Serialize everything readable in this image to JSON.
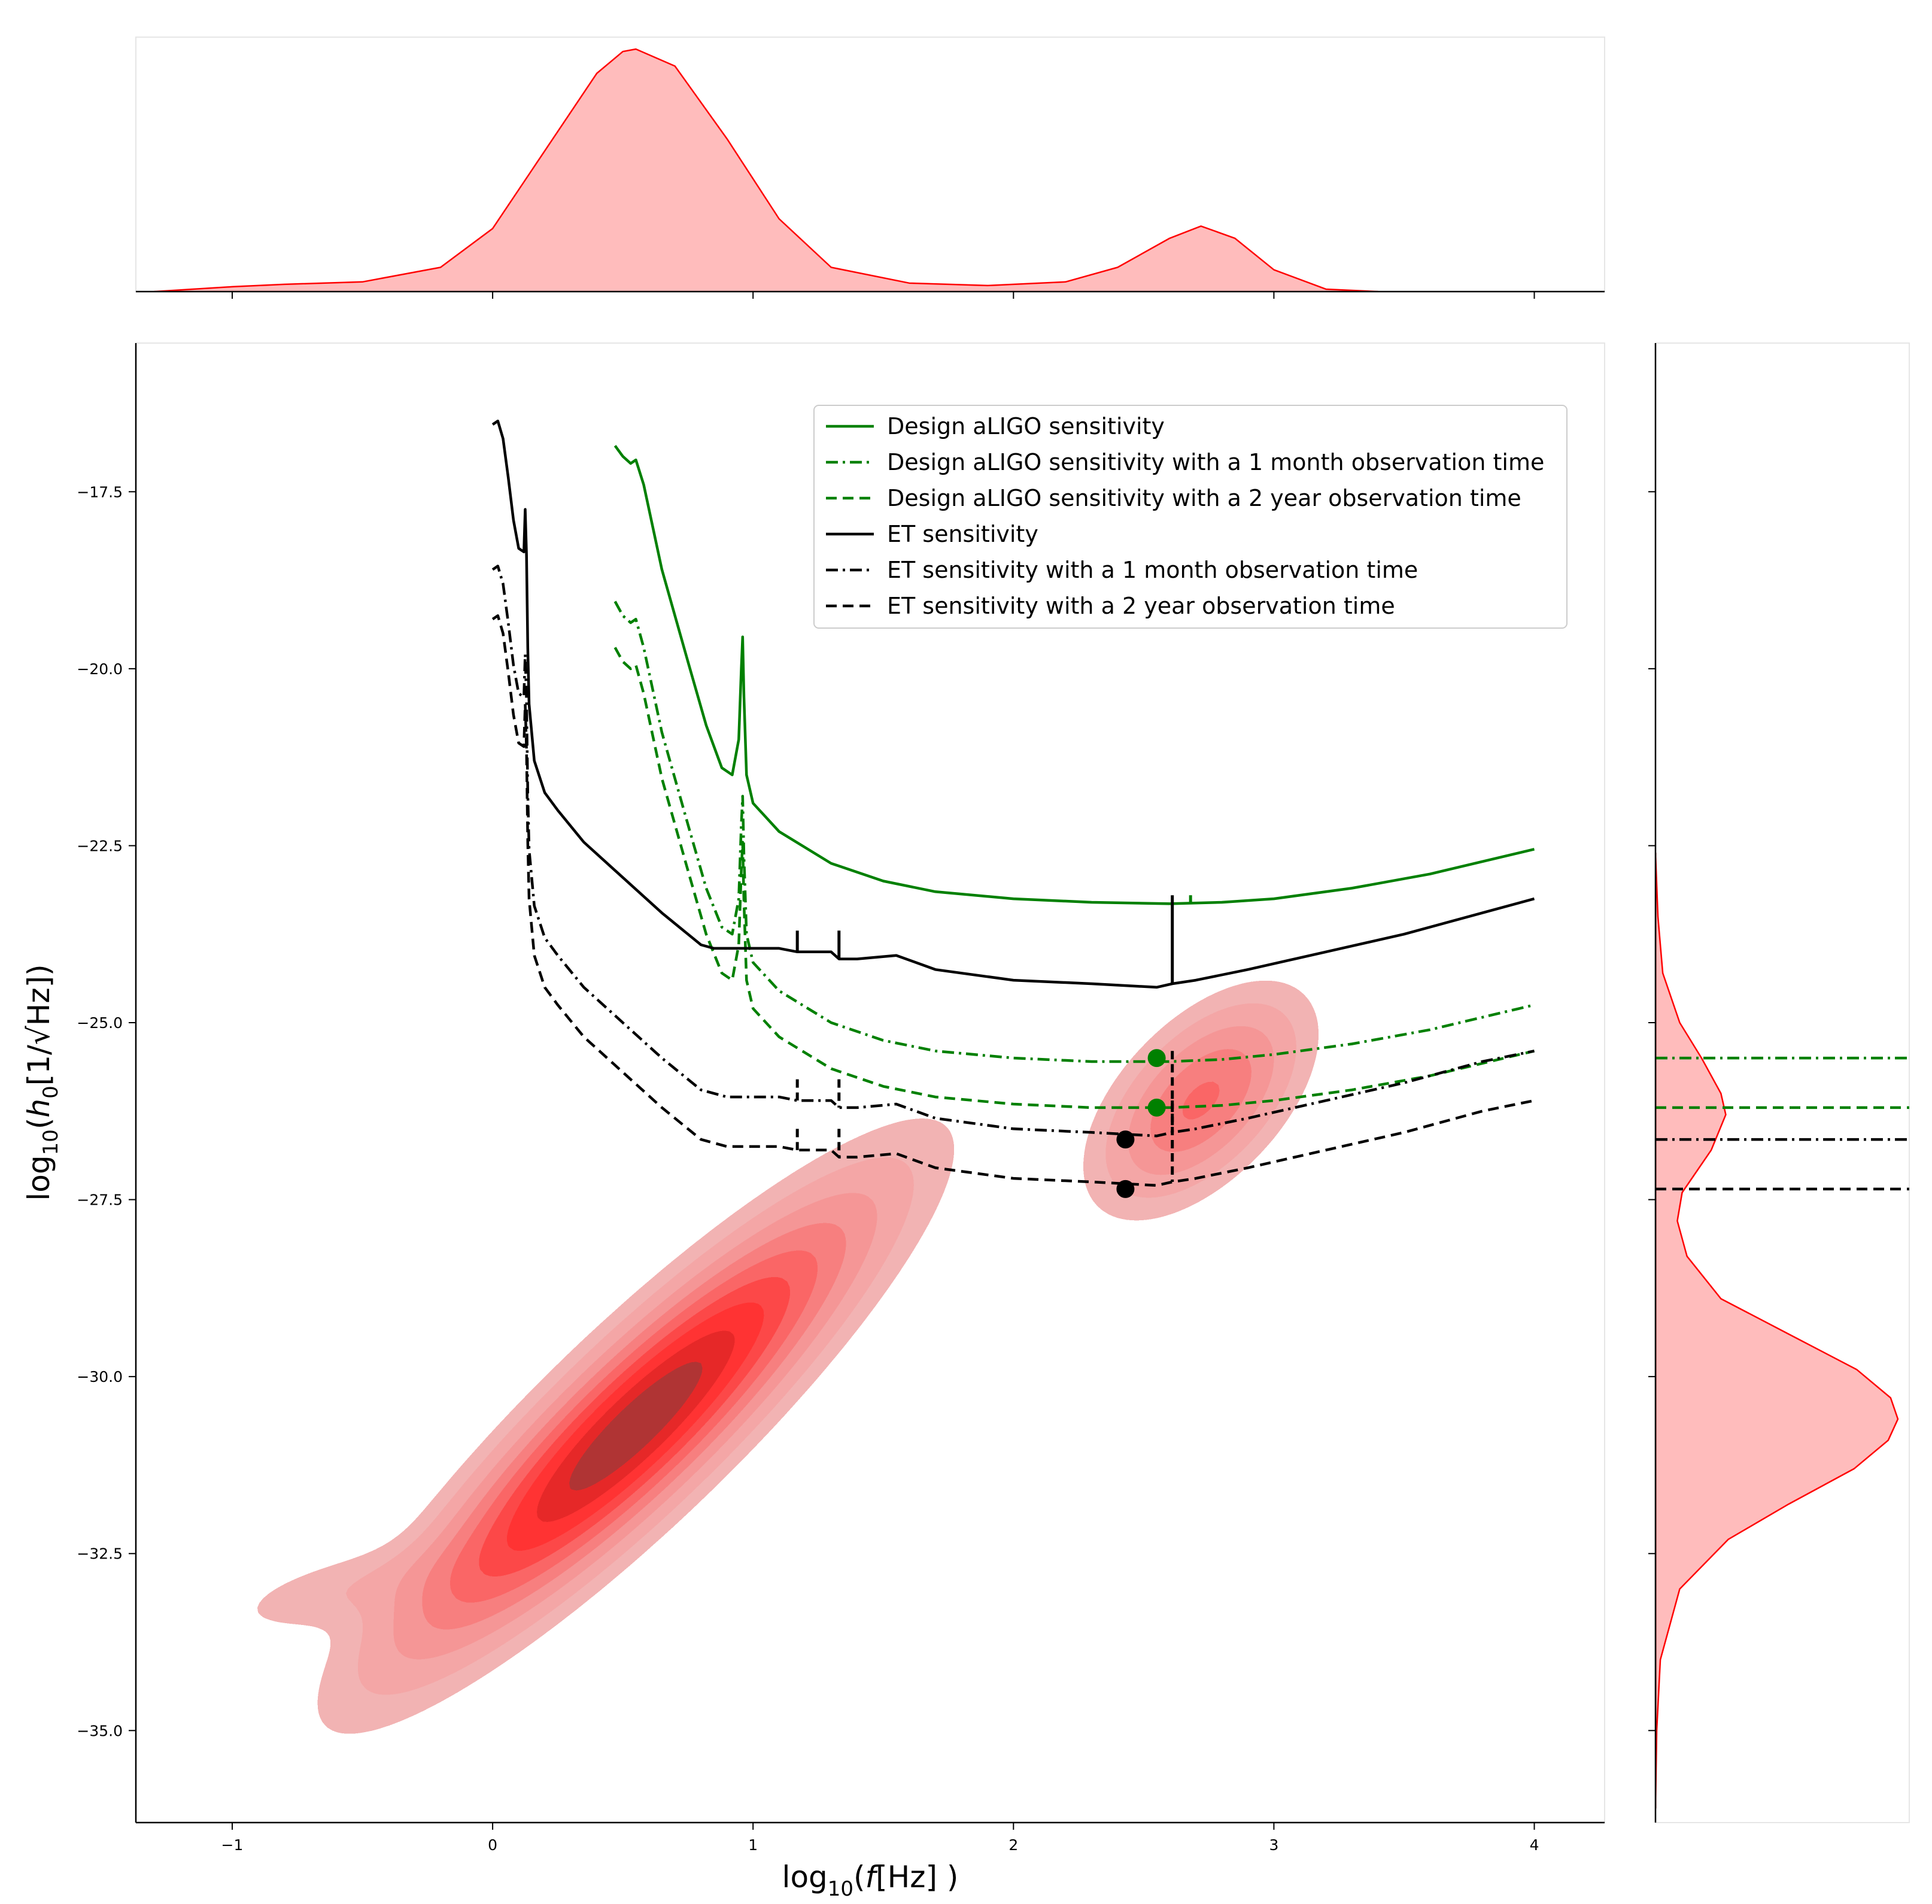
{
  "chart_data": {
    "type": "jointplot-kde",
    "xlabel_prefix": "log",
    "xlabel_sub": "10",
    "xlabel_open": "(",
    "xlabel_var": "f",
    "xlabel_rest": "[Hz] )",
    "ylabel_prefix": "log",
    "ylabel_sub": "10",
    "ylabel_open": "(",
    "ylabel_var": "h",
    "ylabel_var_sub": "0",
    "ylabel_rest": "[1/√Hz])",
    "xlim": [
      -1.37,
      4.27
    ],
    "ylim": [
      -36.3,
      -15.4
    ],
    "x_ticks": [
      -1,
      0,
      1,
      2,
      3,
      4
    ],
    "x_tick_labels": [
      "−1",
      "0",
      "1",
      "2",
      "3",
      "4"
    ],
    "y_ticks": [
      -17.5,
      -20.0,
      -22.5,
      -25.0,
      -27.5,
      -30.0,
      -32.5,
      -35.0
    ],
    "y_tick_labels": [
      "−17.5",
      "−20.0",
      "−22.5",
      "−25.0",
      "−27.5",
      "−30.0",
      "−32.5",
      "−35.0"
    ],
    "colors": {
      "green": "#008000",
      "black": "#000000",
      "kde_line": "#ff0000",
      "kde_fill": "#ffbcbc",
      "kde_levels": [
        "#f2b3b3",
        "#f4a6a6",
        "#f59696",
        "#f77f7f",
        "#fa6666",
        "#fc4848",
        "#ff3333",
        "#e62828",
        "#b03434",
        "#963232"
      ]
    },
    "legend": [
      {
        "label": "Design aLIGO sensitivity",
        "color": "#008000",
        "style": "solid"
      },
      {
        "label": "Design aLIGO sensitivity with a 1 month observation time",
        "color": "#008000",
        "style": "dashdot"
      },
      {
        "label": "Design aLIGO sensitivity with a 2 year observation time",
        "color": "#008000",
        "style": "dashed"
      },
      {
        "label": "ET sensitivity",
        "color": "#000000",
        "style": "solid"
      },
      {
        "label": "ET sensitivity with a 1 month observation time",
        "color": "#000000",
        "style": "dashdot"
      },
      {
        "label": "ET sensitivity with a 2 year observation time",
        "color": "#000000",
        "style": "dashed"
      }
    ],
    "series": [
      {
        "name": "Design aLIGO sensitivity",
        "color": "#008000",
        "style": "solid",
        "x": [
          0.47,
          0.5,
          0.53,
          0.55,
          0.58,
          0.65,
          0.75,
          0.82,
          0.88,
          0.92,
          0.945,
          0.955,
          0.96,
          0.965,
          0.975,
          1.0,
          1.1,
          1.3,
          1.5,
          1.7,
          2.0,
          2.3,
          2.6,
          2.8,
          3.0,
          3.3,
          3.6,
          4.0
        ],
        "y": [
          -16.85,
          -17.0,
          -17.1,
          -17.05,
          -17.4,
          -18.6,
          -19.9,
          -20.8,
          -21.4,
          -21.5,
          -21.0,
          -20.0,
          -19.55,
          -20.4,
          -21.5,
          -21.9,
          -22.3,
          -22.75,
          -23.0,
          -23.15,
          -23.25,
          -23.3,
          -23.32,
          -23.3,
          -23.25,
          -23.1,
          -22.9,
          -22.55
        ]
      },
      {
        "name": "Design aLIGO sensitivity with a 1 month observation time",
        "color": "#008000",
        "style": "dashdot",
        "x": [
          0.47,
          0.5,
          0.53,
          0.55,
          0.58,
          0.65,
          0.75,
          0.82,
          0.88,
          0.92,
          0.945,
          0.955,
          0.96,
          0.965,
          0.975,
          1.0,
          1.1,
          1.3,
          1.5,
          1.7,
          2.0,
          2.3,
          2.6,
          2.8,
          3.0,
          3.3,
          3.6,
          4.0
        ],
        "y": [
          -19.05,
          -19.25,
          -19.35,
          -19.3,
          -19.7,
          -20.9,
          -22.2,
          -23.1,
          -23.65,
          -23.75,
          -23.25,
          -22.2,
          -21.8,
          -22.65,
          -23.75,
          -24.15,
          -24.55,
          -25.0,
          -25.25,
          -25.4,
          -25.5,
          -25.55,
          -25.55,
          -25.52,
          -25.45,
          -25.3,
          -25.1,
          -24.75
        ]
      },
      {
        "name": "Design aLIGO sensitivity with a 2 year observation time",
        "color": "#008000",
        "style": "dashed",
        "x": [
          0.47,
          0.5,
          0.53,
          0.55,
          0.58,
          0.65,
          0.75,
          0.82,
          0.88,
          0.92,
          0.945,
          0.955,
          0.96,
          0.965,
          0.975,
          1.0,
          1.1,
          1.3,
          1.5,
          1.7,
          2.0,
          2.3,
          2.6,
          2.8,
          3.0,
          3.3,
          3.6,
          4.0
        ],
        "y": [
          -19.7,
          -19.9,
          -20.0,
          -19.95,
          -20.35,
          -21.55,
          -22.85,
          -23.75,
          -24.3,
          -24.4,
          -23.9,
          -22.85,
          -22.45,
          -23.3,
          -24.4,
          -24.8,
          -25.2,
          -25.65,
          -25.9,
          -26.05,
          -26.15,
          -26.2,
          -26.2,
          -26.17,
          -26.1,
          -25.95,
          -25.75,
          -25.4
        ]
      },
      {
        "name": "ET sensitivity",
        "color": "#000000",
        "style": "solid",
        "x": [
          0.0,
          0.02,
          0.04,
          0.06,
          0.08,
          0.1,
          0.12,
          0.125,
          0.13,
          0.135,
          0.14,
          0.16,
          0.2,
          0.25,
          0.35,
          0.5,
          0.65,
          0.8,
          0.85,
          0.9,
          1.0,
          1.1,
          1.17,
          1.2,
          1.3,
          1.33,
          1.4,
          1.55,
          1.7,
          2.0,
          2.3,
          2.55,
          2.61,
          2.7,
          2.9,
          3.2,
          3.5,
          3.8,
          4.0
        ],
        "y": [
          -16.55,
          -16.5,
          -16.75,
          -17.3,
          -17.9,
          -18.3,
          -18.35,
          -17.75,
          -18.4,
          -19.7,
          -20.5,
          -21.3,
          -21.75,
          -22.0,
          -22.45,
          -22.95,
          -23.45,
          -23.9,
          -23.95,
          -23.95,
          -23.95,
          -23.95,
          -24.0,
          -24.0,
          -24.0,
          -24.1,
          -24.1,
          -24.05,
          -24.25,
          -24.4,
          -24.45,
          -24.5,
          -24.45,
          -24.4,
          -24.25,
          -24.0,
          -23.75,
          -23.45,
          -23.25
        ]
      },
      {
        "name": "ET sensitivity with a 1 month observation time",
        "color": "#000000",
        "style": "dashdot",
        "x": [
          0.0,
          0.02,
          0.04,
          0.06,
          0.08,
          0.1,
          0.12,
          0.125,
          0.13,
          0.135,
          0.14,
          0.16,
          0.2,
          0.25,
          0.35,
          0.5,
          0.65,
          0.8,
          0.85,
          0.9,
          1.0,
          1.1,
          1.17,
          1.2,
          1.3,
          1.33,
          1.4,
          1.55,
          1.7,
          2.0,
          2.3,
          2.55,
          2.61,
          2.7,
          2.9,
          3.2,
          3.5,
          3.8,
          4.0
        ],
        "y": [
          -18.6,
          -18.55,
          -18.8,
          -19.35,
          -19.95,
          -20.35,
          -20.4,
          -19.8,
          -20.45,
          -21.75,
          -22.55,
          -23.35,
          -23.8,
          -24.05,
          -24.5,
          -25.0,
          -25.5,
          -25.95,
          -26.0,
          -26.05,
          -26.05,
          -26.05,
          -26.1,
          -26.1,
          -26.1,
          -26.2,
          -26.2,
          -26.15,
          -26.35,
          -26.5,
          -26.55,
          -26.6,
          -26.55,
          -26.5,
          -26.35,
          -26.1,
          -25.85,
          -25.55,
          -25.4
        ]
      },
      {
        "name": "ET sensitivity with a 2 year observation time",
        "color": "#000000",
        "style": "dashed",
        "x": [
          0.0,
          0.02,
          0.04,
          0.06,
          0.08,
          0.1,
          0.12,
          0.125,
          0.13,
          0.135,
          0.14,
          0.16,
          0.2,
          0.25,
          0.35,
          0.5,
          0.65,
          0.8,
          0.85,
          0.9,
          1.0,
          1.1,
          1.17,
          1.2,
          1.3,
          1.33,
          1.4,
          1.55,
          1.7,
          2.0,
          2.3,
          2.55,
          2.61,
          2.7,
          2.9,
          3.2,
          3.5,
          3.8,
          4.0
        ],
        "y": [
          -19.3,
          -19.25,
          -19.5,
          -20.05,
          -20.65,
          -21.05,
          -21.1,
          -20.5,
          -21.15,
          -22.45,
          -23.25,
          -24.05,
          -24.5,
          -24.75,
          -25.2,
          -25.7,
          -26.2,
          -26.65,
          -26.7,
          -26.75,
          -26.75,
          -26.75,
          -26.8,
          -26.8,
          -26.8,
          -26.9,
          -26.9,
          -26.85,
          -27.05,
          -27.2,
          -27.25,
          -27.3,
          -27.25,
          -27.2,
          -27.05,
          -26.8,
          -26.55,
          -26.25,
          -26.1
        ]
      }
    ],
    "spikes": [
      {
        "color": "#000000",
        "style": "solid",
        "x": 1.17,
        "y": [
          -23.7,
          -24.0
        ]
      },
      {
        "color": "#000000",
        "style": "solid",
        "x": 1.33,
        "y": [
          -23.7,
          -24.1
        ]
      },
      {
        "color": "#000000",
        "style": "solid",
        "x": 2.61,
        "y": [
          -23.2,
          -24.45
        ]
      },
      {
        "color": "#000000",
        "style": "dashed",
        "x": 1.17,
        "y": [
          -25.8,
          -26.1
        ]
      },
      {
        "color": "#000000",
        "style": "dashed",
        "x": 1.33,
        "y": [
          -25.8,
          -26.2
        ]
      },
      {
        "color": "#000000",
        "style": "dashed",
        "x": 2.61,
        "y": [
          -25.4,
          -26.55
        ]
      },
      {
        "color": "#000000",
        "style": "dashed",
        "x": 1.17,
        "y": [
          -26.5,
          -26.8
        ]
      },
      {
        "color": "#000000",
        "style": "dashed",
        "x": 1.33,
        "y": [
          -26.5,
          -26.9
        ]
      },
      {
        "color": "#000000",
        "style": "dashed",
        "x": 2.61,
        "y": [
          -26.1,
          -27.25
        ]
      },
      {
        "color": "#008000",
        "style": "solid",
        "x": 2.68,
        "y": [
          -23.2,
          -23.3
        ]
      }
    ],
    "points": [
      {
        "x": 2.55,
        "y": -25.5,
        "color": "#008000"
      },
      {
        "x": 2.55,
        "y": -26.2,
        "color": "#008000"
      },
      {
        "x": 2.43,
        "y": -26.65,
        "color": "#000000"
      },
      {
        "x": 2.43,
        "y": -27.35,
        "color": "#000000"
      }
    ],
    "hlines_marginal": [
      {
        "y": -25.5,
        "color": "#008000",
        "style": "dashdot"
      },
      {
        "y": -26.2,
        "color": "#008000",
        "style": "dashed"
      },
      {
        "y": -26.65,
        "color": "#000000",
        "style": "dashdot"
      },
      {
        "y": -27.35,
        "color": "#000000",
        "style": "dashed"
      }
    ],
    "kde_components": [
      {
        "cx": 0.55,
        "cy": -30.7,
        "sx": 0.45,
        "sy": 1.6,
        "rho": 0.9,
        "w": 1.0
      },
      {
        "cx": 2.72,
        "cy": -26.1,
        "sx": 0.2,
        "sy": 0.75,
        "rho": 0.55,
        "w": 0.32
      },
      {
        "cx": -0.55,
        "cy": -33.0,
        "sx": 0.3,
        "sy": 0.4,
        "rho": 0.6,
        "w": 0.05
      }
    ],
    "kde_levels": [
      0.025,
      0.06,
      0.12,
      0.2,
      0.3,
      0.42,
      0.55,
      0.7,
      0.85
    ],
    "marginal_x": {
      "x": [
        -1.3,
        -1.0,
        -0.8,
        -0.5,
        -0.2,
        0.0,
        0.2,
        0.4,
        0.5,
        0.55,
        0.7,
        0.9,
        1.1,
        1.3,
        1.6,
        1.9,
        2.2,
        2.4,
        2.6,
        2.72,
        2.85,
        3.0,
        3.2,
        3.4
      ],
      "density": [
        0.0,
        0.02,
        0.03,
        0.04,
        0.1,
        0.26,
        0.58,
        0.9,
        0.99,
        1.0,
        0.93,
        0.63,
        0.3,
        0.1,
        0.035,
        0.025,
        0.04,
        0.1,
        0.22,
        0.27,
        0.22,
        0.09,
        0.01,
        0.0
      ]
    },
    "marginal_y": {
      "y": [
        -22.6,
        -23.5,
        -24.3,
        -25.0,
        -25.5,
        -26.0,
        -26.3,
        -26.8,
        -27.4,
        -27.8,
        -28.3,
        -28.9,
        -29.4,
        -29.9,
        -30.3,
        -30.6,
        -30.9,
        -31.3,
        -31.8,
        -32.3,
        -33.0,
        -34.0,
        -35.0,
        -36.1
      ],
      "density": [
        0.0,
        0.01,
        0.03,
        0.1,
        0.19,
        0.27,
        0.29,
        0.23,
        0.11,
        0.09,
        0.13,
        0.27,
        0.55,
        0.83,
        0.97,
        1.0,
        0.96,
        0.82,
        0.55,
        0.3,
        0.1,
        0.02,
        0.005,
        0.0
      ]
    }
  }
}
